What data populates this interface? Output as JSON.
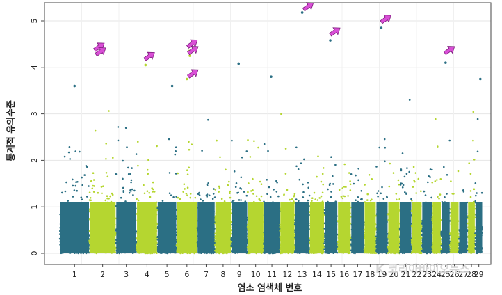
{
  "chart_data": {
    "type": "scatter",
    "title": "",
    "xlabel": "염소 염색체 번호",
    "ylabel": "통계적 유의수준",
    "ylim": [
      0,
      5.5
    ],
    "yticks": [
      0,
      1,
      2,
      3,
      4,
      5
    ],
    "grid": true,
    "legend": "none",
    "chromosomes": [
      "1",
      "2",
      "3",
      "4",
      "5",
      "6",
      "7",
      "8",
      "9",
      "10",
      "11",
      "12",
      "13",
      "14",
      "15",
      "16",
      "17",
      "18",
      "19",
      "20",
      "21",
      "22",
      "23",
      "24",
      "25",
      "26",
      "27",
      "28",
      "29"
    ],
    "chromosome_spans": [
      [
        1,
        0,
        40
      ],
      [
        2,
        40,
        76
      ],
      [
        3,
        76,
        104
      ],
      [
        4,
        104,
        132
      ],
      [
        5,
        132,
        158
      ],
      [
        6,
        158,
        186
      ],
      [
        7,
        186,
        210
      ],
      [
        8,
        210,
        232
      ],
      [
        9,
        232,
        254
      ],
      [
        10,
        254,
        276
      ],
      [
        11,
        276,
        298
      ],
      [
        12,
        298,
        318
      ],
      [
        13,
        318,
        338
      ],
      [
        14,
        338,
        358
      ],
      [
        15,
        358,
        376
      ],
      [
        16,
        376,
        394
      ],
      [
        17,
        394,
        412
      ],
      [
        18,
        412,
        428
      ],
      [
        19,
        428,
        444
      ],
      [
        20,
        444,
        460
      ],
      [
        21,
        460,
        476
      ],
      [
        22,
        476,
        490
      ],
      [
        23,
        490,
        504
      ],
      [
        24,
        504,
        516
      ],
      [
        25,
        516,
        528
      ],
      [
        26,
        528,
        540
      ],
      [
        27,
        540,
        552
      ],
      [
        28,
        552,
        562
      ],
      [
        29,
        562,
        572
      ]
    ],
    "colors": {
      "odd": "#2b6f84",
      "even": "#b5d630",
      "arrow": "#d94fd6",
      "arrow_edge": "#7a1a7a"
    },
    "top_points": [
      {
        "chromosome": 1,
        "x": 20,
        "y": 3.6
      },
      {
        "chromosome": 2,
        "x": 51,
        "y": 4.3
      },
      {
        "chromosome": 4,
        "x": 116,
        "y": 4.05
      },
      {
        "chromosome": 5,
        "x": 152,
        "y": 3.6
      },
      {
        "chromosome": 6,
        "x": 175,
        "y": 4.35
      },
      {
        "chromosome": 6,
        "x": 176,
        "y": 4.25
      },
      {
        "chromosome": 6,
        "x": 172,
        "y": 3.75
      },
      {
        "chromosome": 9,
        "x": 242,
        "y": 4.08
      },
      {
        "chromosome": 11,
        "x": 286,
        "y": 3.8
      },
      {
        "chromosome": 13,
        "x": 328,
        "y": 5.18
      },
      {
        "chromosome": 15,
        "x": 366,
        "y": 4.58
      },
      {
        "chromosome": 19,
        "x": 435,
        "y": 4.85
      },
      {
        "chromosome": 25,
        "x": 522,
        "y": 4.1
      },
      {
        "chromosome": 29,
        "x": 569,
        "y": 3.75
      }
    ],
    "arrows": [
      {
        "x": 54,
        "y": 4.45
      },
      {
        "x": 56,
        "y": 4.35
      },
      {
        "x": 122,
        "y": 4.25
      },
      {
        "x": 180,
        "y": 4.52
      },
      {
        "x": 181,
        "y": 4.38
      },
      {
        "x": 181,
        "y": 3.88
      },
      {
        "x": 337,
        "y": 5.32
      },
      {
        "x": 373,
        "y": 4.78
      },
      {
        "x": 442,
        "y": 5.05
      },
      {
        "x": 528,
        "y": 4.38
      }
    ]
  },
  "watermark": "K 코리아바이오뉴스"
}
